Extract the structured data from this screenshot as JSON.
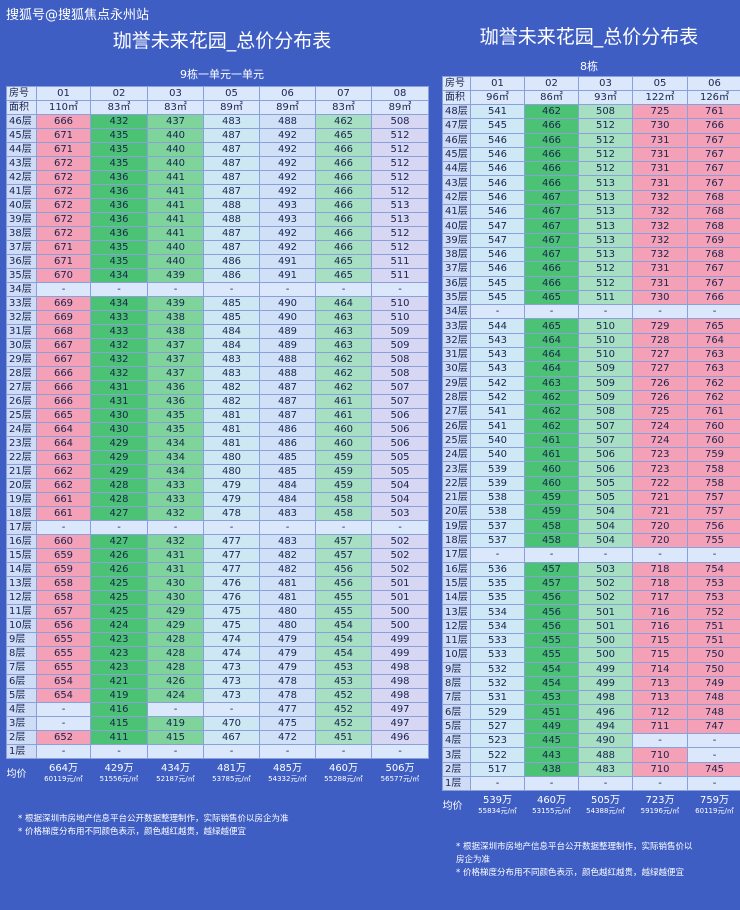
{
  "watermark": "搜狐号@搜狐焦点永州站",
  "left": {
    "title": "珈誉未来花园_总价分布表",
    "subtitle": "9栋一单元一单元",
    "row_header": "房号",
    "area_header": "面积",
    "units": [
      "01",
      "02",
      "03",
      "05",
      "06",
      "07",
      "08"
    ],
    "areas": [
      "110㎡",
      "83㎡",
      "83㎡",
      "89㎡",
      "89㎡",
      "83㎡",
      "89㎡"
    ],
    "avg_label": "均价",
    "avg_totals": [
      "664万",
      "429万",
      "434万",
      "481万",
      "485万",
      "460万",
      "506万"
    ],
    "avg_unit_prices": [
      "60119元/㎡",
      "51556元/㎡",
      "52187元/㎡",
      "53785元/㎡",
      "54332元/㎡",
      "55288元/㎡",
      "56577元/㎡"
    ],
    "notes": [
      "* 根据深圳市房地产信息平台公开数据整理制作，实际销售价以房企为准",
      "* 价格梯度分布用不同颜色表示，颜色越红越贵，越绿越便宜"
    ],
    "rows": [
      {
        "floor": "46层",
        "v": [
          "666",
          "432",
          "437",
          "483",
          "488",
          "462",
          "508"
        ]
      },
      {
        "floor": "45层",
        "v": [
          "671",
          "435",
          "440",
          "487",
          "492",
          "465",
          "512"
        ]
      },
      {
        "floor": "44层",
        "v": [
          "671",
          "435",
          "440",
          "487",
          "492",
          "466",
          "512"
        ]
      },
      {
        "floor": "43层",
        "v": [
          "672",
          "435",
          "440",
          "487",
          "492",
          "466",
          "512"
        ]
      },
      {
        "floor": "42层",
        "v": [
          "672",
          "436",
          "441",
          "487",
          "492",
          "466",
          "512"
        ]
      },
      {
        "floor": "41层",
        "v": [
          "672",
          "436",
          "441",
          "487",
          "492",
          "466",
          "512"
        ]
      },
      {
        "floor": "40层",
        "v": [
          "672",
          "436",
          "441",
          "488",
          "493",
          "466",
          "513"
        ]
      },
      {
        "floor": "39层",
        "v": [
          "672",
          "436",
          "441",
          "488",
          "493",
          "466",
          "513"
        ]
      },
      {
        "floor": "38层",
        "v": [
          "672",
          "436",
          "441",
          "487",
          "492",
          "466",
          "512"
        ]
      },
      {
        "floor": "37层",
        "v": [
          "671",
          "435",
          "440",
          "487",
          "492",
          "466",
          "512"
        ]
      },
      {
        "floor": "36层",
        "v": [
          "671",
          "435",
          "440",
          "486",
          "491",
          "465",
          "511"
        ]
      },
      {
        "floor": "35层",
        "v": [
          "670",
          "434",
          "439",
          "486",
          "491",
          "465",
          "511"
        ]
      },
      {
        "floor": "34层",
        "v": [
          "-",
          "-",
          "-",
          "-",
          "-",
          "-",
          "-"
        ]
      },
      {
        "floor": "33层",
        "v": [
          "669",
          "434",
          "439",
          "485",
          "490",
          "464",
          "510"
        ]
      },
      {
        "floor": "32层",
        "v": [
          "669",
          "433",
          "438",
          "485",
          "490",
          "463",
          "510"
        ]
      },
      {
        "floor": "31层",
        "v": [
          "668",
          "433",
          "438",
          "484",
          "489",
          "463",
          "509"
        ]
      },
      {
        "floor": "30层",
        "v": [
          "667",
          "432",
          "437",
          "484",
          "489",
          "463",
          "509"
        ]
      },
      {
        "floor": "29层",
        "v": [
          "667",
          "432",
          "437",
          "483",
          "488",
          "462",
          "508"
        ]
      },
      {
        "floor": "28层",
        "v": [
          "666",
          "432",
          "437",
          "483",
          "488",
          "462",
          "508"
        ]
      },
      {
        "floor": "27层",
        "v": [
          "666",
          "431",
          "436",
          "482",
          "487",
          "462",
          "507"
        ]
      },
      {
        "floor": "26层",
        "v": [
          "666",
          "431",
          "436",
          "482",
          "487",
          "461",
          "507"
        ]
      },
      {
        "floor": "25层",
        "v": [
          "665",
          "430",
          "435",
          "481",
          "487",
          "461",
          "506"
        ]
      },
      {
        "floor": "24层",
        "v": [
          "664",
          "430",
          "435",
          "481",
          "486",
          "460",
          "506"
        ]
      },
      {
        "floor": "23层",
        "v": [
          "664",
          "429",
          "434",
          "481",
          "486",
          "460",
          "506"
        ]
      },
      {
        "floor": "22层",
        "v": [
          "663",
          "429",
          "434",
          "480",
          "485",
          "459",
          "505"
        ]
      },
      {
        "floor": "21层",
        "v": [
          "662",
          "429",
          "434",
          "480",
          "485",
          "459",
          "505"
        ]
      },
      {
        "floor": "20层",
        "v": [
          "662",
          "428",
          "433",
          "479",
          "484",
          "459",
          "504"
        ]
      },
      {
        "floor": "19层",
        "v": [
          "661",
          "428",
          "433",
          "479",
          "484",
          "458",
          "504"
        ]
      },
      {
        "floor": "18层",
        "v": [
          "661",
          "427",
          "432",
          "478",
          "483",
          "458",
          "503"
        ]
      },
      {
        "floor": "17层",
        "v": [
          "-",
          "-",
          "-",
          "-",
          "-",
          "-",
          "-"
        ]
      },
      {
        "floor": "16层",
        "v": [
          "660",
          "427",
          "432",
          "477",
          "483",
          "457",
          "502"
        ]
      },
      {
        "floor": "15层",
        "v": [
          "659",
          "426",
          "431",
          "477",
          "482",
          "457",
          "502"
        ]
      },
      {
        "floor": "14层",
        "v": [
          "659",
          "426",
          "431",
          "477",
          "482",
          "456",
          "502"
        ]
      },
      {
        "floor": "13层",
        "v": [
          "658",
          "425",
          "430",
          "476",
          "481",
          "456",
          "501"
        ]
      },
      {
        "floor": "12层",
        "v": [
          "658",
          "425",
          "430",
          "476",
          "481",
          "455",
          "501"
        ]
      },
      {
        "floor": "11层",
        "v": [
          "657",
          "425",
          "429",
          "475",
          "480",
          "455",
          "500"
        ]
      },
      {
        "floor": "10层",
        "v": [
          "656",
          "424",
          "429",
          "475",
          "480",
          "454",
          "500"
        ]
      },
      {
        "floor": "9层",
        "v": [
          "655",
          "423",
          "428",
          "474",
          "479",
          "454",
          "499"
        ]
      },
      {
        "floor": "8层",
        "v": [
          "655",
          "423",
          "428",
          "474",
          "479",
          "454",
          "499"
        ]
      },
      {
        "floor": "7层",
        "v": [
          "655",
          "423",
          "428",
          "473",
          "479",
          "453",
          "498"
        ]
      },
      {
        "floor": "6层",
        "v": [
          "654",
          "421",
          "426",
          "473",
          "478",
          "453",
          "498"
        ]
      },
      {
        "floor": "5层",
        "v": [
          "654",
          "419",
          "424",
          "473",
          "478",
          "452",
          "498"
        ]
      },
      {
        "floor": "4层",
        "v": [
          "-",
          "416",
          "-",
          "-",
          "477",
          "452",
          "497"
        ]
      },
      {
        "floor": "3层",
        "v": [
          "-",
          "415",
          "419",
          "470",
          "475",
          "452",
          "497"
        ]
      },
      {
        "floor": "2层",
        "v": [
          "652",
          "411",
          "415",
          "467",
          "472",
          "451",
          "496"
        ]
      },
      {
        "floor": "1层",
        "v": [
          "-",
          "-",
          "-",
          "-",
          "-",
          "-",
          "-"
        ]
      }
    ]
  },
  "right": {
    "title": "珈誉未来花园_总价分布表",
    "subtitle": "8栋",
    "row_header": "房号",
    "area_header": "面积",
    "units": [
      "01",
      "02",
      "03",
      "05",
      "06"
    ],
    "areas": [
      "96㎡",
      "86㎡",
      "93㎡",
      "122㎡",
      "126㎡"
    ],
    "avg_label": "均价",
    "avg_totals": [
      "539万",
      "460万",
      "505万",
      "723万",
      "759万"
    ],
    "avg_unit_prices": [
      "55834元/㎡",
      "53155元/㎡",
      "54388元/㎡",
      "59196元/㎡",
      "60119元/㎡"
    ],
    "notes": [
      "* 根据深圳市房地产信息平台公开数据整理制作，实际销售价以",
      "房企为准",
      "* 价格梯度分布用不同颜色表示，颜色越红越贵，越绿越便宜"
    ],
    "rows": [
      {
        "floor": "48层",
        "v": [
          "541",
          "462",
          "508",
          "725",
          "761"
        ]
      },
      {
        "floor": "47层",
        "v": [
          "545",
          "466",
          "512",
          "730",
          "766"
        ]
      },
      {
        "floor": "46层",
        "v": [
          "546",
          "466",
          "512",
          "731",
          "767"
        ]
      },
      {
        "floor": "45层",
        "v": [
          "546",
          "466",
          "512",
          "731",
          "767"
        ]
      },
      {
        "floor": "44层",
        "v": [
          "546",
          "466",
          "512",
          "731",
          "767"
        ]
      },
      {
        "floor": "43层",
        "v": [
          "546",
          "466",
          "513",
          "731",
          "767"
        ]
      },
      {
        "floor": "42层",
        "v": [
          "546",
          "467",
          "513",
          "732",
          "768"
        ]
      },
      {
        "floor": "41层",
        "v": [
          "546",
          "467",
          "513",
          "732",
          "768"
        ]
      },
      {
        "floor": "40层",
        "v": [
          "547",
          "467",
          "513",
          "732",
          "768"
        ]
      },
      {
        "floor": "39层",
        "v": [
          "547",
          "467",
          "513",
          "732",
          "769"
        ]
      },
      {
        "floor": "38层",
        "v": [
          "546",
          "467",
          "513",
          "732",
          "768"
        ]
      },
      {
        "floor": "37层",
        "v": [
          "546",
          "466",
          "512",
          "731",
          "767"
        ]
      },
      {
        "floor": "36层",
        "v": [
          "545",
          "466",
          "512",
          "731",
          "767"
        ]
      },
      {
        "floor": "35层",
        "v": [
          "545",
          "465",
          "511",
          "730",
          "766"
        ]
      },
      {
        "floor": "34层",
        "v": [
          "-",
          "-",
          "-",
          "-",
          "-"
        ]
      },
      {
        "floor": "33层",
        "v": [
          "544",
          "465",
          "510",
          "729",
          "765"
        ]
      },
      {
        "floor": "32层",
        "v": [
          "543",
          "464",
          "510",
          "728",
          "764"
        ]
      },
      {
        "floor": "31层",
        "v": [
          "543",
          "464",
          "510",
          "727",
          "763"
        ]
      },
      {
        "floor": "30层",
        "v": [
          "543",
          "464",
          "509",
          "727",
          "763"
        ]
      },
      {
        "floor": "29层",
        "v": [
          "542",
          "463",
          "509",
          "726",
          "762"
        ]
      },
      {
        "floor": "28层",
        "v": [
          "542",
          "462",
          "509",
          "726",
          "762"
        ]
      },
      {
        "floor": "27层",
        "v": [
          "541",
          "462",
          "508",
          "725",
          "761"
        ]
      },
      {
        "floor": "26层",
        "v": [
          "541",
          "462",
          "507",
          "724",
          "760"
        ]
      },
      {
        "floor": "25层",
        "v": [
          "540",
          "461",
          "507",
          "724",
          "760"
        ]
      },
      {
        "floor": "24层",
        "v": [
          "540",
          "461",
          "506",
          "723",
          "759"
        ]
      },
      {
        "floor": "23层",
        "v": [
          "539",
          "460",
          "506",
          "723",
          "758"
        ]
      },
      {
        "floor": "22层",
        "v": [
          "539",
          "460",
          "505",
          "722",
          "758"
        ]
      },
      {
        "floor": "21层",
        "v": [
          "538",
          "459",
          "505",
          "721",
          "757"
        ]
      },
      {
        "floor": "20层",
        "v": [
          "538",
          "459",
          "504",
          "721",
          "757"
        ]
      },
      {
        "floor": "19层",
        "v": [
          "537",
          "458",
          "504",
          "720",
          "756"
        ]
      },
      {
        "floor": "18层",
        "v": [
          "537",
          "458",
          "504",
          "720",
          "755"
        ]
      },
      {
        "floor": "17层",
        "v": [
          "-",
          "-",
          "-",
          "-",
          "-"
        ]
      },
      {
        "floor": "16层",
        "v": [
          "536",
          "457",
          "503",
          "718",
          "754"
        ]
      },
      {
        "floor": "15层",
        "v": [
          "535",
          "457",
          "502",
          "718",
          "753"
        ]
      },
      {
        "floor": "14层",
        "v": [
          "535",
          "456",
          "502",
          "717",
          "753"
        ]
      },
      {
        "floor": "13层",
        "v": [
          "534",
          "456",
          "501",
          "716",
          "752"
        ]
      },
      {
        "floor": "12层",
        "v": [
          "534",
          "456",
          "501",
          "716",
          "751"
        ]
      },
      {
        "floor": "11层",
        "v": [
          "533",
          "455",
          "500",
          "715",
          "751"
        ]
      },
      {
        "floor": "10层",
        "v": [
          "533",
          "455",
          "500",
          "715",
          "750"
        ]
      },
      {
        "floor": "9层",
        "v": [
          "532",
          "454",
          "499",
          "714",
          "750"
        ]
      },
      {
        "floor": "8层",
        "v": [
          "532",
          "454",
          "499",
          "713",
          "749"
        ]
      },
      {
        "floor": "7层",
        "v": [
          "531",
          "453",
          "498",
          "713",
          "748"
        ]
      },
      {
        "floor": "6层",
        "v": [
          "529",
          "451",
          "496",
          "712",
          "748"
        ]
      },
      {
        "floor": "5层",
        "v": [
          "527",
          "449",
          "494",
          "711",
          "747"
        ]
      },
      {
        "floor": "4层",
        "v": [
          "523",
          "445",
          "490",
          "-",
          "-"
        ]
      },
      {
        "floor": "3层",
        "v": [
          "522",
          "443",
          "488",
          "710",
          "-"
        ]
      },
      {
        "floor": "2层",
        "v": [
          "517",
          "438",
          "483",
          "710",
          "745"
        ]
      },
      {
        "floor": "1层",
        "v": [
          "-",
          "-",
          "-",
          "-",
          "-"
        ]
      }
    ]
  },
  "colors": {
    "red": "#f4a0b6",
    "green_dark": "#3dba6a",
    "green": "#7fd49c",
    "green_light": "#b7e6c8",
    "aqua": "#c7ecdc",
    "light": "#dbe7fa",
    "lavender": "#d7d6f3"
  },
  "column_colors": {
    "left": [
      "#f4a0b6",
      "#4cc275",
      "#7fd49c",
      "#cde8f2",
      "#cfe0f7",
      "#a7dfc2",
      "#d7d6f3"
    ],
    "right": [
      "#cfe8f6",
      "#4cc275",
      "#a7dfc2",
      "#f4a0b6",
      "#f4a0b6"
    ]
  }
}
